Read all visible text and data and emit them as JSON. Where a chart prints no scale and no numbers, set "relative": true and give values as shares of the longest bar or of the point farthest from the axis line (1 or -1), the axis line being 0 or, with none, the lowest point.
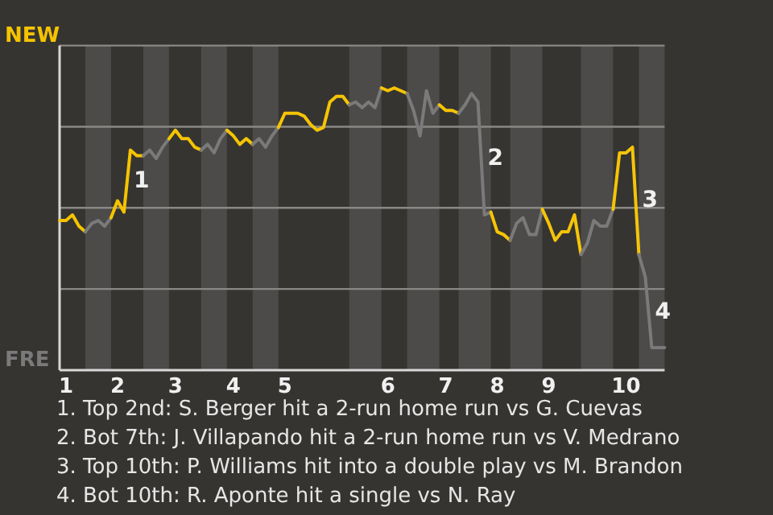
{
  "chart_data": {
    "type": "line",
    "relative": true,
    "grid": "y",
    "marker": "none",
    "line_style": "solid",
    "categories": [
      null,
      "1",
      null,
      null,
      null,
      null,
      null,
      null,
      null,
      "2",
      null,
      null,
      null,
      null,
      null,
      null,
      null,
      null,
      "3",
      null,
      null,
      null,
      null,
      null,
      null,
      null,
      null,
      "4",
      null,
      null,
      null,
      null,
      null,
      null,
      null,
      "5",
      null,
      null,
      null,
      null,
      null,
      null,
      null,
      null,
      null,
      null,
      null,
      null,
      null,
      null,
      null,
      "6",
      null,
      null,
      null,
      null,
      null,
      null,
      null,
      null,
      "7",
      null,
      null,
      null,
      null,
      null,
      null,
      null,
      "8",
      null,
      null,
      null,
      null,
      null,
      null,
      null,
      "9",
      null,
      null,
      null,
      null,
      null,
      null,
      null,
      null,
      null,
      null,
      null,
      "10",
      null,
      null,
      null,
      null,
      null,
      null
    ],
    "series": [
      {
        "name": "NEW",
        "color": "#f5c400",
        "values": [
          0.53,
          0.53,
          0.55,
          0.51,
          0.49,
          null,
          null,
          null,
          null,
          null,
          null,
          null,
          null,
          null,
          null,
          null,
          null,
          null,
          null,
          null,
          null,
          null,
          null,
          null,
          null,
          null,
          null,
          null,
          null,
          null,
          null,
          null,
          null,
          null,
          null,
          null,
          null,
          null,
          null,
          null,
          null,
          null,
          null,
          null,
          null,
          null,
          null,
          null,
          null,
          null,
          null,
          null,
          null,
          null,
          null,
          null,
          null,
          null,
          null,
          null,
          null,
          null,
          null,
          null,
          null,
          null,
          null,
          null,
          null,
          null,
          null,
          null,
          null,
          null,
          null,
          null,
          null,
          null,
          null,
          null,
          null,
          null,
          null,
          null,
          null,
          null,
          null,
          null,
          null,
          null,
          null,
          null,
          null,
          null,
          null
        ]
      },
      {
        "name": "FRE",
        "color": "#7a7a7a",
        "values": [
          null,
          null,
          null,
          null,
          0.49,
          0.52,
          0.53,
          0.51,
          0.54,
          null,
          null,
          null,
          null,
          null,
          null,
          null,
          null,
          null,
          null,
          null,
          null,
          null,
          null,
          null,
          null,
          null,
          null,
          null,
          null,
          null,
          null,
          null,
          null,
          null,
          null,
          null,
          null,
          null,
          null,
          null,
          null,
          null,
          null,
          null,
          null,
          null,
          null,
          null,
          null,
          null,
          null,
          null,
          null,
          null,
          null,
          null,
          null,
          null,
          null,
          null,
          null,
          null,
          null,
          null,
          null,
          null,
          null,
          null,
          null,
          null,
          null,
          null,
          null,
          null,
          null,
          null,
          null,
          null,
          null,
          null,
          null,
          null,
          null,
          null,
          null,
          null,
          null,
          null,
          null,
          null,
          null,
          null,
          null,
          null,
          null
        ]
      },
      {
        "color": "#f5c401",
        "values": [
          null,
          null,
          null,
          null,
          null,
          null,
          null,
          null,
          0.54,
          0.6,
          0.56,
          0.78,
          0.76,
          0.76,
          null,
          null,
          null,
          null,
          null,
          null,
          null,
          null,
          null,
          null,
          null,
          null,
          null,
          null,
          null,
          null,
          null,
          null,
          null,
          null,
          null,
          null,
          null,
          null,
          null,
          null,
          null,
          null,
          null,
          null,
          null,
          null,
          null,
          null,
          null,
          null,
          null,
          null,
          null,
          null,
          null,
          null,
          null,
          null,
          null,
          null,
          null,
          null,
          null,
          null,
          null,
          null,
          null,
          null,
          null,
          null,
          null,
          null,
          null,
          null,
          null,
          null,
          null,
          null,
          null,
          null,
          null,
          null,
          null,
          null,
          null,
          null,
          null,
          null,
          null,
          null,
          null,
          null,
          null,
          null,
          null
        ]
      },
      {
        "color": "#7a7a7a",
        "values": [
          null,
          null,
          null,
          null,
          null,
          null,
          null,
          null,
          null,
          null,
          null,
          null,
          null,
          0.76,
          0.78,
          0.75,
          0.79,
          0.82,
          null,
          null,
          null,
          null,
          null,
          null,
          null,
          null,
          null,
          null,
          null,
          null,
          null,
          null,
          null,
          null,
          null,
          null,
          null,
          null,
          null,
          null,
          null,
          null,
          null,
          null,
          null,
          null,
          null,
          null,
          null,
          null,
          null,
          null,
          null,
          null,
          null,
          null,
          null,
          null,
          null,
          null,
          null,
          null,
          null,
          null,
          null,
          null,
          null,
          null,
          null,
          null,
          null,
          null,
          null,
          null,
          null,
          null,
          null,
          null,
          null,
          null,
          null,
          null,
          null,
          null,
          null,
          null,
          null,
          null,
          null,
          null,
          null,
          null,
          null,
          null,
          null
        ]
      },
      {
        "color": "#f5c402",
        "values": [
          null,
          null,
          null,
          null,
          null,
          null,
          null,
          null,
          null,
          null,
          null,
          null,
          null,
          null,
          null,
          null,
          null,
          0.82,
          0.85,
          0.82,
          0.82,
          0.79,
          0.78,
          null,
          null,
          null,
          null,
          null,
          null,
          null,
          null,
          null,
          null,
          null,
          null,
          null,
          null,
          null,
          null,
          null,
          null,
          null,
          null,
          null,
          null,
          null,
          null,
          null,
          null,
          null,
          null,
          null,
          null,
          null,
          null,
          null,
          null,
          null,
          null,
          null,
          null,
          null,
          null,
          null,
          null,
          null,
          null,
          null,
          null,
          null,
          null,
          null,
          null,
          null,
          null,
          null,
          null,
          null,
          null,
          null,
          null,
          null,
          null,
          null,
          null,
          null,
          null,
          null,
          null,
          null,
          null,
          null,
          null,
          null,
          null
        ]
      },
      {
        "color": "#7a7a7a",
        "values": [
          null,
          null,
          null,
          null,
          null,
          null,
          null,
          null,
          null,
          null,
          null,
          null,
          null,
          null,
          null,
          null,
          null,
          null,
          null,
          null,
          null,
          null,
          0.78,
          0.8,
          0.77,
          0.82,
          0.85,
          null,
          null,
          null,
          null,
          null,
          null,
          null,
          null,
          null,
          null,
          null,
          null,
          null,
          null,
          null,
          null,
          null,
          null,
          null,
          null,
          null,
          null,
          null,
          null,
          null,
          null,
          null,
          null,
          null,
          null,
          null,
          null,
          null,
          null,
          null,
          null,
          null,
          null,
          null,
          null,
          null,
          null,
          null,
          null,
          null,
          null,
          null,
          null,
          null,
          null,
          null,
          null,
          null,
          null,
          null,
          null,
          null,
          null,
          null,
          null,
          null,
          null,
          null,
          null,
          null,
          null,
          null,
          null
        ]
      },
      {
        "color": "#f5c403",
        "values": [
          null,
          null,
          null,
          null,
          null,
          null,
          null,
          null,
          null,
          null,
          null,
          null,
          null,
          null,
          null,
          null,
          null,
          null,
          null,
          null,
          null,
          null,
          null,
          null,
          null,
          null,
          0.85,
          0.83,
          0.8,
          0.82,
          0.8,
          null,
          null,
          null,
          null,
          null,
          null,
          null,
          null,
          null,
          null,
          null,
          null,
          null,
          null,
          null,
          null,
          null,
          null,
          null,
          null,
          null,
          null,
          null,
          null,
          null,
          null,
          null,
          null,
          null,
          null,
          null,
          null,
          null,
          null,
          null,
          null,
          null,
          null,
          null,
          null,
          null,
          null,
          null,
          null,
          null,
          null,
          null,
          null,
          null,
          null,
          null,
          null,
          null,
          null,
          null,
          null,
          null,
          null,
          null,
          null,
          null,
          null,
          null,
          null
        ]
      },
      {
        "color": "#7a7a7a",
        "values": [
          null,
          null,
          null,
          null,
          null,
          null,
          null,
          null,
          null,
          null,
          null,
          null,
          null,
          null,
          null,
          null,
          null,
          null,
          null,
          null,
          null,
          null,
          null,
          null,
          null,
          null,
          null,
          null,
          null,
          null,
          0.8,
          0.82,
          0.79,
          0.83,
          0.86,
          null,
          null,
          null,
          null,
          null,
          null,
          null,
          null,
          null,
          null,
          null,
          null,
          null,
          null,
          null,
          null,
          null,
          null,
          null,
          null,
          null,
          null,
          null,
          null,
          null,
          null,
          null,
          null,
          null,
          null,
          null,
          null,
          null,
          null,
          null,
          null,
          null,
          null,
          null,
          null,
          null,
          null,
          null,
          null,
          null,
          null,
          null,
          null,
          null,
          null,
          null,
          null,
          null,
          null,
          null,
          null,
          null,
          null,
          null,
          null
        ]
      },
      {
        "color": "#f5c404",
        "values": [
          null,
          null,
          null,
          null,
          null,
          null,
          null,
          null,
          null,
          null,
          null,
          null,
          null,
          null,
          null,
          null,
          null,
          null,
          null,
          null,
          null,
          null,
          null,
          null,
          null,
          null,
          null,
          null,
          null,
          null,
          null,
          null,
          null,
          null,
          0.86,
          0.91,
          0.91,
          0.91,
          0.9,
          0.87,
          0.85,
          0.86,
          0.95,
          0.97,
          0.97,
          0.94,
          null,
          null,
          null,
          null,
          null,
          null,
          null,
          null,
          null,
          null,
          null,
          null,
          null,
          null,
          null,
          null,
          null,
          null,
          null,
          null,
          null,
          null,
          null,
          null,
          null,
          null,
          null,
          null,
          null,
          null,
          null,
          null,
          null,
          null,
          null,
          null,
          null,
          null,
          null,
          null,
          null,
          null,
          null,
          null,
          null,
          null,
          null,
          null,
          null
        ]
      },
      {
        "color": "#7a7a7a",
        "values": [
          null,
          null,
          null,
          null,
          null,
          null,
          null,
          null,
          null,
          null,
          null,
          null,
          null,
          null,
          null,
          null,
          null,
          null,
          null,
          null,
          null,
          null,
          null,
          null,
          null,
          null,
          null,
          null,
          null,
          null,
          null,
          null,
          null,
          null,
          null,
          null,
          null,
          null,
          null,
          null,
          null,
          null,
          null,
          null,
          null,
          0.94,
          0.95,
          0.93,
          0.95,
          0.93,
          1,
          null,
          null,
          null,
          null,
          null,
          null,
          null,
          null,
          null,
          null,
          null,
          null,
          null,
          null,
          null,
          null,
          null,
          null,
          null,
          null,
          null,
          null,
          null,
          null,
          null,
          null,
          null,
          null,
          null,
          null,
          null,
          null,
          null,
          null,
          null,
          null,
          null,
          null,
          null,
          null,
          null,
          null,
          null,
          null
        ]
      },
      {
        "color": "#f5c405",
        "values": [
          null,
          null,
          null,
          null,
          null,
          null,
          null,
          null,
          null,
          null,
          null,
          null,
          null,
          null,
          null,
          null,
          null,
          null,
          null,
          null,
          null,
          null,
          null,
          null,
          null,
          null,
          null,
          null,
          null,
          null,
          null,
          null,
          null,
          null,
          null,
          null,
          null,
          null,
          null,
          null,
          null,
          null,
          null,
          null,
          null,
          null,
          null,
          null,
          null,
          null,
          1,
          0.99,
          1,
          0.99,
          0.98,
          null,
          null,
          null,
          null,
          null,
          null,
          null,
          null,
          null,
          null,
          null,
          null,
          null,
          null,
          null,
          null,
          null,
          null,
          null,
          null,
          null,
          null,
          null,
          null,
          null,
          null,
          null,
          null,
          null,
          null,
          null,
          null,
          null,
          null,
          null,
          null,
          null,
          null,
          null,
          null
        ]
      },
      {
        "color": "#7a7a7a",
        "values": [
          null,
          null,
          null,
          null,
          null,
          null,
          null,
          null,
          null,
          null,
          null,
          null,
          null,
          null,
          null,
          null,
          null,
          null,
          null,
          null,
          null,
          null,
          null,
          null,
          null,
          null,
          null,
          null,
          null,
          null,
          null,
          null,
          null,
          null,
          null,
          null,
          null,
          null,
          null,
          null,
          null,
          null,
          null,
          null,
          null,
          null,
          null,
          null,
          null,
          null,
          null,
          null,
          null,
          null,
          0.98,
          0.92,
          0.83,
          0.99,
          0.91,
          0.94,
          null,
          null,
          null,
          null,
          null,
          null,
          null,
          null,
          null,
          null,
          null,
          null,
          null,
          null,
          null,
          null,
          null,
          null,
          null,
          null,
          null,
          null,
          null,
          null,
          null,
          null,
          null,
          null,
          null,
          null,
          null,
          null,
          null,
          null,
          null
        ]
      },
      {
        "color": "#f5c406",
        "values": [
          null,
          null,
          null,
          null,
          null,
          null,
          null,
          null,
          null,
          null,
          null,
          null,
          null,
          null,
          null,
          null,
          null,
          null,
          null,
          null,
          null,
          null,
          null,
          null,
          null,
          null,
          null,
          null,
          null,
          null,
          null,
          null,
          null,
          null,
          null,
          null,
          null,
          null,
          null,
          null,
          null,
          null,
          null,
          null,
          null,
          null,
          null,
          null,
          null,
          null,
          null,
          null,
          null,
          null,
          null,
          null,
          null,
          null,
          null,
          0.94,
          0.92,
          0.92,
          0.91,
          null,
          null,
          null,
          null,
          null,
          null,
          null,
          null,
          null,
          null,
          null,
          null,
          null,
          null,
          null,
          null,
          null,
          null,
          null,
          null,
          null,
          null,
          null,
          null,
          null,
          null,
          null,
          null,
          null,
          null,
          null,
          null
        ]
      },
      {
        "color": "#7a7a7a",
        "values": [
          null,
          null,
          null,
          null,
          null,
          null,
          null,
          null,
          null,
          null,
          null,
          null,
          null,
          null,
          null,
          null,
          null,
          null,
          null,
          null,
          null,
          null,
          null,
          null,
          null,
          null,
          null,
          null,
          null,
          null,
          null,
          null,
          null,
          null,
          null,
          null,
          null,
          null,
          null,
          null,
          null,
          null,
          null,
          null,
          null,
          null,
          null,
          null,
          null,
          null,
          null,
          null,
          null,
          null,
          null,
          null,
          null,
          null,
          null,
          null,
          null,
          null,
          0.91,
          0.94,
          0.98,
          0.95,
          0.55,
          0.56,
          null,
          null,
          null,
          null,
          null,
          null,
          null,
          null,
          null,
          null,
          null,
          null,
          null,
          null,
          null,
          null,
          null,
          null,
          null,
          null,
          null,
          null,
          null,
          null,
          null,
          null,
          null
        ]
      },
      {
        "color": "#f5c407",
        "values": [
          null,
          null,
          null,
          null,
          null,
          null,
          null,
          null,
          null,
          null,
          null,
          null,
          null,
          null,
          null,
          null,
          null,
          null,
          null,
          null,
          null,
          null,
          null,
          null,
          null,
          null,
          null,
          null,
          null,
          null,
          null,
          null,
          null,
          null,
          null,
          null,
          null,
          null,
          null,
          null,
          null,
          null,
          null,
          null,
          null,
          null,
          null,
          null,
          null,
          null,
          null,
          null,
          null,
          null,
          null,
          null,
          null,
          null,
          null,
          null,
          null,
          null,
          null,
          null,
          null,
          null,
          null,
          0.56,
          0.49,
          0.48,
          0.46,
          null,
          null,
          null,
          null,
          null,
          null,
          null,
          null,
          null,
          null,
          null,
          null,
          null,
          null,
          null,
          null,
          null,
          null,
          null,
          null,
          null,
          null,
          null,
          null
        ]
      },
      {
        "color": "#7a7a7a",
        "values": [
          null,
          null,
          null,
          null,
          null,
          null,
          null,
          null,
          null,
          null,
          null,
          null,
          null,
          null,
          null,
          null,
          null,
          null,
          null,
          null,
          null,
          null,
          null,
          null,
          null,
          null,
          null,
          null,
          null,
          null,
          null,
          null,
          null,
          null,
          null,
          null,
          null,
          null,
          null,
          null,
          null,
          null,
          null,
          null,
          null,
          null,
          null,
          null,
          null,
          null,
          null,
          null,
          null,
          null,
          null,
          null,
          null,
          null,
          null,
          null,
          null,
          null,
          null,
          null,
          null,
          null,
          null,
          null,
          null,
          null,
          0.46,
          0.52,
          0.54,
          0.48,
          0.48,
          0.57,
          null,
          null,
          null,
          null,
          null,
          null,
          null,
          null,
          null,
          null,
          null,
          null,
          null,
          null,
          null,
          null,
          null,
          null,
          null
        ]
      },
      {
        "color": "#f5c408",
        "values": [
          null,
          null,
          null,
          null,
          null,
          null,
          null,
          null,
          null,
          null,
          null,
          null,
          null,
          null,
          null,
          null,
          null,
          null,
          null,
          null,
          null,
          null,
          null,
          null,
          null,
          null,
          null,
          null,
          null,
          null,
          null,
          null,
          null,
          null,
          null,
          null,
          null,
          null,
          null,
          null,
          null,
          null,
          null,
          null,
          null,
          null,
          null,
          null,
          null,
          null,
          null,
          null,
          null,
          null,
          null,
          null,
          null,
          null,
          null,
          null,
          null,
          null,
          null,
          null,
          null,
          null,
          null,
          null,
          null,
          null,
          null,
          null,
          null,
          null,
          null,
          0.57,
          0.52,
          0.46,
          0.49,
          0.49,
          0.55,
          0.41,
          null,
          null,
          null,
          null,
          null,
          null,
          null,
          null,
          null,
          null,
          null,
          null,
          null
        ]
      },
      {
        "color": "#7a7a7a",
        "values": [
          null,
          null,
          null,
          null,
          null,
          null,
          null,
          null,
          null,
          null,
          null,
          null,
          null,
          null,
          null,
          null,
          null,
          null,
          null,
          null,
          null,
          null,
          null,
          null,
          null,
          null,
          null,
          null,
          null,
          null,
          null,
          null,
          null,
          null,
          null,
          null,
          null,
          null,
          null,
          null,
          null,
          null,
          null,
          null,
          null,
          null,
          null,
          null,
          null,
          null,
          null,
          null,
          null,
          null,
          null,
          null,
          null,
          null,
          null,
          null,
          null,
          null,
          null,
          null,
          null,
          null,
          null,
          null,
          null,
          null,
          null,
          null,
          null,
          null,
          null,
          null,
          null,
          null,
          null,
          null,
          null,
          0.41,
          0.45,
          0.53,
          0.51,
          0.51,
          0.57,
          null,
          null,
          null,
          null,
          null,
          null,
          null,
          null
        ]
      },
      {
        "color": "#f5c409",
        "values": [
          null,
          null,
          null,
          null,
          null,
          null,
          null,
          null,
          null,
          null,
          null,
          null,
          null,
          null,
          null,
          null,
          null,
          null,
          null,
          null,
          null,
          null,
          null,
          null,
          null,
          null,
          null,
          null,
          null,
          null,
          null,
          null,
          null,
          null,
          null,
          null,
          null,
          null,
          null,
          null,
          null,
          null,
          null,
          null,
          null,
          null,
          null,
          null,
          null,
          null,
          null,
          null,
          null,
          null,
          null,
          null,
          null,
          null,
          null,
          null,
          null,
          null,
          null,
          null,
          null,
          null,
          null,
          null,
          null,
          null,
          null,
          null,
          null,
          null,
          null,
          null,
          null,
          null,
          null,
          null,
          null,
          null,
          null,
          null,
          null,
          null,
          0.57,
          0.77,
          0.77,
          0.79,
          0.41,
          null,
          null,
          null,
          null
        ]
      },
      {
        "color": "#7a7a7a",
        "values": [
          null,
          null,
          null,
          null,
          null,
          null,
          null,
          null,
          null,
          null,
          null,
          null,
          null,
          null,
          null,
          null,
          null,
          null,
          null,
          null,
          null,
          null,
          null,
          null,
          null,
          null,
          null,
          null,
          null,
          null,
          null,
          null,
          null,
          null,
          null,
          null,
          null,
          null,
          null,
          null,
          null,
          null,
          null,
          null,
          null,
          null,
          null,
          null,
          null,
          null,
          null,
          null,
          null,
          null,
          null,
          null,
          null,
          null,
          null,
          null,
          null,
          null,
          null,
          null,
          null,
          null,
          null,
          null,
          null,
          null,
          null,
          null,
          null,
          null,
          null,
          null,
          null,
          null,
          null,
          null,
          null,
          null,
          null,
          null,
          null,
          null,
          null,
          null,
          null,
          null,
          0.41,
          0.33,
          0.08,
          0.08,
          0.08
        ]
      }
    ],
    "annotations": [
      "1",
      "2",
      "3",
      "4",
      "1. Top 2nd: S. Berger hit a 2-run home run vs G. Cuevas",
      "2. Bot 7th: J. Villapando hit a 2-run home run vs V. Medrano",
      "3. Top 10th: P. Williams hit into a double play vs M. Brandon",
      "4. Bot 10th: R. Aponte hit a single vs N. Ray"
    ]
  }
}
